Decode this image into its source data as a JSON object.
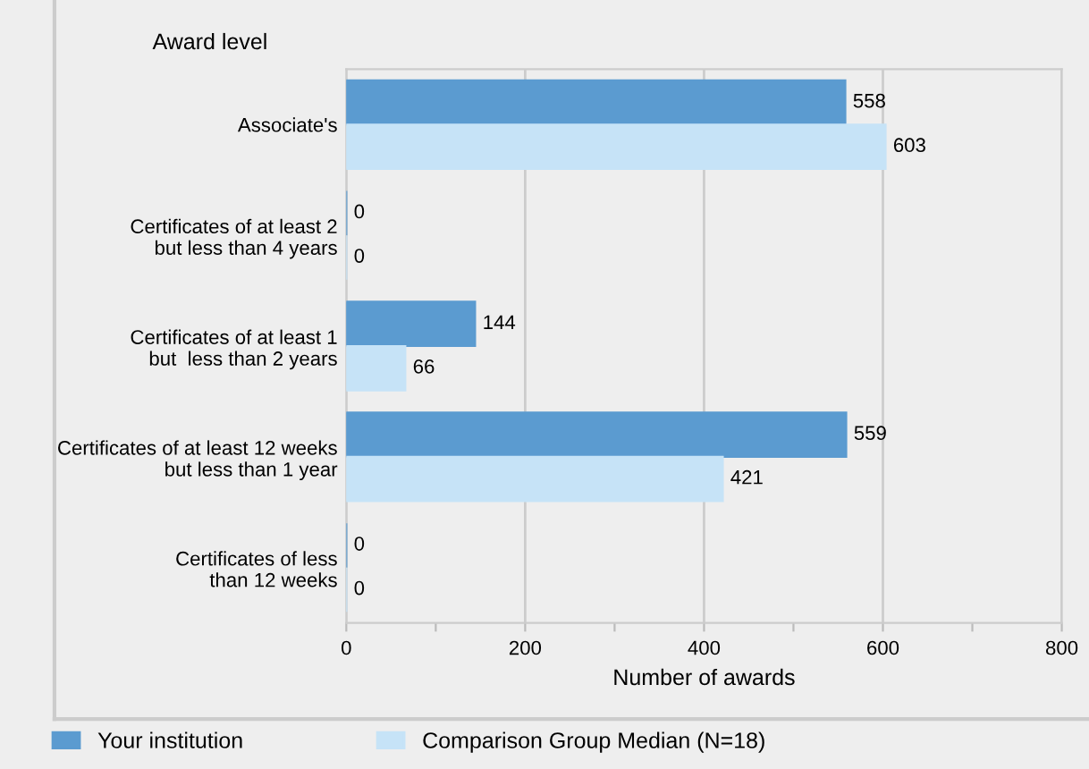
{
  "chart_data": {
    "type": "bar",
    "orientation": "horizontal",
    "ylabel": "Award level",
    "xlabel": "Number of awards",
    "categories": [
      "Associate's",
      "Certificates of at least 2\nbut less than 4 years",
      "Certificates of at least 1\nbut  less than 2 years",
      "Certificates of at least 12 weeks\nbut less than 1 year",
      "Certificates of less\nthan 12 weeks"
    ],
    "series": [
      {
        "name": "Your institution",
        "color": "#5b9bd0",
        "values": [
          558,
          0,
          144,
          559,
          0
        ]
      },
      {
        "name": "Comparison Group Median (N=18)",
        "color": "#c6e3f7",
        "values": [
          603,
          0,
          66,
          421,
          0
        ]
      }
    ],
    "xlim": [
      0,
      800
    ],
    "xticks": [
      0,
      {
        "value": 100,
        "label": null
      },
      200,
      {
        "value": 300,
        "label": null
      },
      400,
      {
        "value": 500,
        "label": null
      },
      600,
      {
        "value": 700,
        "label": null
      },
      800
    ],
    "grid": "x",
    "legend": "bottom",
    "data_labels": true
  }
}
